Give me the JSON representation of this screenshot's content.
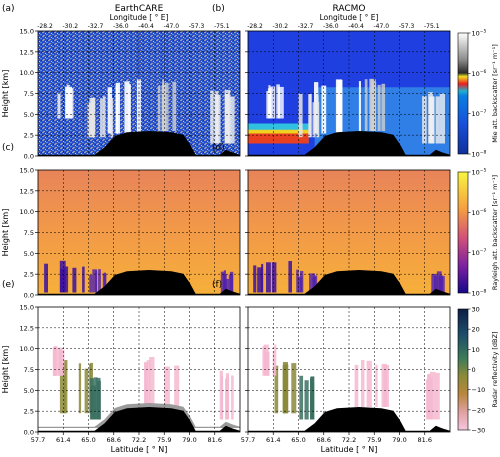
{
  "figure": {
    "columns": [
      {
        "name": "EarthCARE"
      },
      {
        "name": "RACMO"
      }
    ],
    "panels": [
      {
        "id": "a",
        "label": "(a)",
        "title": "EarthCARE",
        "row": 0,
        "col": 0
      },
      {
        "id": "b",
        "label": "(b)",
        "title": "RACMO",
        "row": 0,
        "col": 1
      },
      {
        "id": "c",
        "label": "(c)",
        "title": "",
        "row": 1,
        "col": 0
      },
      {
        "id": "d",
        "label": "(d)",
        "title": "",
        "row": 1,
        "col": 1
      },
      {
        "id": "e",
        "label": "(e)",
        "title": "",
        "row": 2,
        "col": 0
      },
      {
        "id": "f",
        "label": "(f)",
        "title": "",
        "row": 2,
        "col": 1
      }
    ],
    "top_axis": {
      "label": "Longitude [ ° E]",
      "ticks": [
        "-28.2",
        "-30.2",
        "-32.7",
        "-36.0",
        "-40.4",
        "-47.0",
        "-57.3",
        "-75.1"
      ]
    },
    "bottom_axis": {
      "label": "Latitude [ ° N]",
      "ticks": [
        "57.7",
        "61.4",
        "65.0",
        "68.6",
        "72.2",
        "75.9",
        "79.0",
        "81.6"
      ]
    },
    "y_axis": {
      "label": "Height [km]",
      "ticks": [
        "0.0",
        "2.5",
        "5.0",
        "7.5",
        "10.0",
        "12.5",
        "15.0"
      ]
    },
    "colorbars": [
      {
        "label": "Mie att. backscatter [sr⁻¹ m⁻¹]",
        "ticks": [
          {
            "base": "10",
            "exp": "−5"
          },
          {
            "base": "10",
            "exp": "−6"
          },
          {
            "base": "10",
            "exp": "−7"
          },
          {
            "base": "10",
            "exp": "−8"
          }
        ]
      },
      {
        "label": "Rayleigh att. backscatter [sr⁻¹ m⁻¹]",
        "ticks": [
          {
            "base": "10",
            "exp": "−5"
          },
          {
            "base": "10",
            "exp": "−6"
          },
          {
            "base": "10",
            "exp": "−7"
          },
          {
            "base": "10",
            "exp": "−8"
          }
        ]
      },
      {
        "label": "Radar reflectivity [dBZ]",
        "ticks": [
          {
            "base": "30"
          },
          {
            "base": "20"
          },
          {
            "base": "10"
          },
          {
            "base": "0"
          },
          {
            "base": "−10"
          },
          {
            "base": "−20"
          },
          {
            "base": "−30"
          }
        ]
      }
    ],
    "colors": {
      "ground": "#000000",
      "racmo_mie_background": "#1f3fe0",
      "rayleigh_background": "#f2a04a",
      "radar_cloud": "#8a8a3a",
      "radar_low": "#f4b8d0",
      "radar_high": "#0d2a55"
    }
  }
}
